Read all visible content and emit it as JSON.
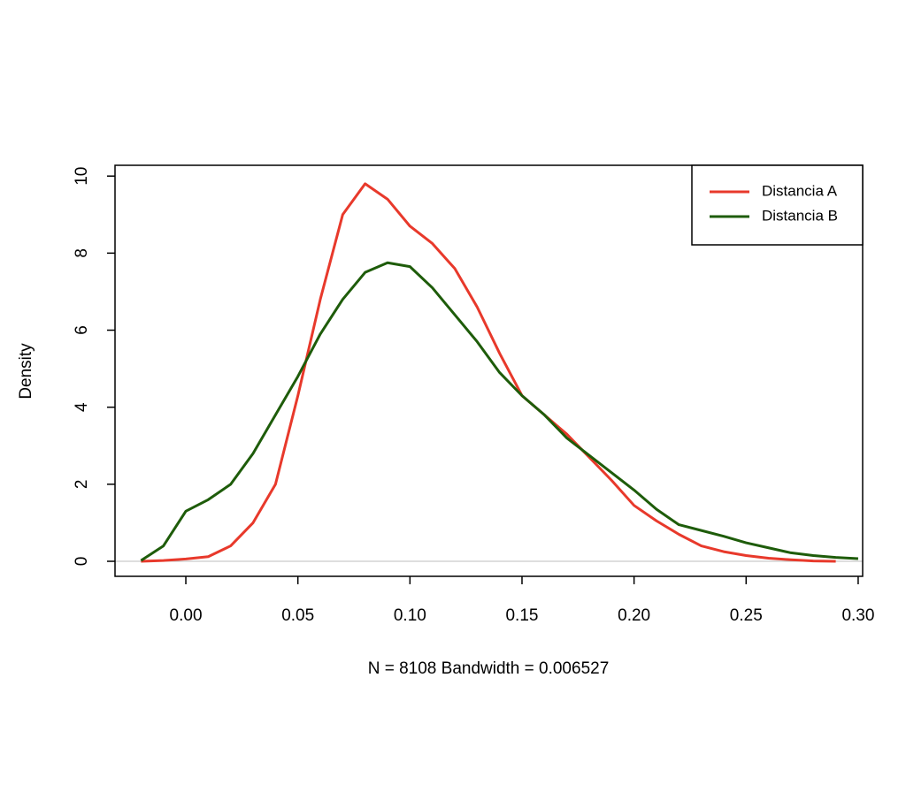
{
  "chart_data": {
    "type": "line",
    "x_label": "N = 8108   Bandwidth = 0.006527",
    "y_label": "Density",
    "x": [
      -0.02,
      -0.01,
      0.0,
      0.01,
      0.02,
      0.03,
      0.04,
      0.05,
      0.06,
      0.07,
      0.08,
      0.09,
      0.1,
      0.11,
      0.12,
      0.13,
      0.14,
      0.15,
      0.16,
      0.17,
      0.18,
      0.19,
      0.2,
      0.21,
      0.22,
      0.23,
      0.24,
      0.25,
      0.26,
      0.27,
      0.28,
      0.29,
      0.3
    ],
    "series": [
      {
        "name": "Distancia A",
        "color": "#e8392b",
        "values": [
          0.0,
          0.02,
          0.06,
          0.12,
          0.4,
          1.0,
          2.0,
          4.3,
          6.8,
          9.0,
          9.8,
          9.4,
          8.7,
          8.25,
          7.6,
          6.6,
          5.4,
          4.3,
          3.8,
          3.3,
          2.7,
          2.1,
          1.45,
          1.05,
          0.7,
          0.4,
          0.25,
          0.15,
          0.08,
          0.04,
          0.01,
          0.0,
          null
        ]
      },
      {
        "name": "Distancia B",
        "color": "#1e5c0a",
        "values": [
          0.02,
          0.4,
          1.3,
          1.6,
          2.0,
          2.8,
          3.8,
          4.8,
          5.9,
          6.8,
          7.5,
          7.75,
          7.65,
          7.1,
          6.4,
          5.7,
          4.9,
          4.3,
          3.8,
          3.2,
          2.75,
          2.3,
          1.85,
          1.35,
          0.95,
          0.8,
          0.65,
          0.48,
          0.35,
          0.22,
          0.15,
          0.1,
          0.07
        ]
      }
    ],
    "xlim": [
      -0.0316,
      0.302
    ],
    "ylim": [
      -0.39,
      10.28
    ],
    "xticks": [
      {
        "value": 0,
        "label": "0.00"
      },
      {
        "value": 0.05,
        "label": "0.05"
      },
      {
        "value": 0.1,
        "label": "0.10"
      },
      {
        "value": 0.15,
        "label": "0.15"
      },
      {
        "value": 0.2,
        "label": "0.20"
      },
      {
        "value": 0.25,
        "label": "0.25"
      },
      {
        "value": 0.3,
        "label": "0.30"
      }
    ],
    "yticks": [
      0,
      2,
      4,
      6,
      8,
      10
    ],
    "zero_line": true,
    "legend": "top-right"
  }
}
